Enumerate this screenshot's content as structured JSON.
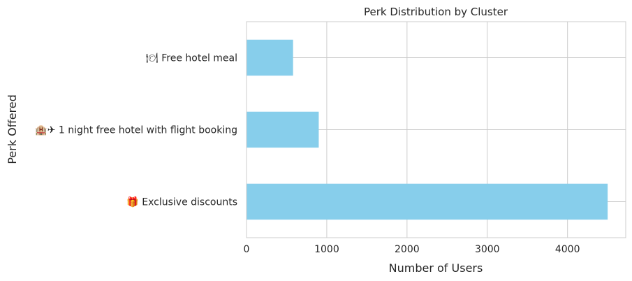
{
  "chart_data": {
    "type": "bar",
    "orientation": "horizontal",
    "title": "Perk Distribution by Cluster",
    "xlabel": "Number of Users",
    "ylabel": "Perk Offered",
    "categories": [
      "🎁 Exclusive discounts",
      "🏨✈ 1 night free hotel with flight booking",
      "🍽 Free hotel meal"
    ],
    "values": [
      4500,
      900,
      580
    ],
    "xlim": [
      0,
      4725
    ],
    "xticks": [
      0,
      1000,
      2000,
      3000,
      4000
    ],
    "grid": true,
    "bar_color": "#87ceeb",
    "grid_color": "#cccccc"
  }
}
